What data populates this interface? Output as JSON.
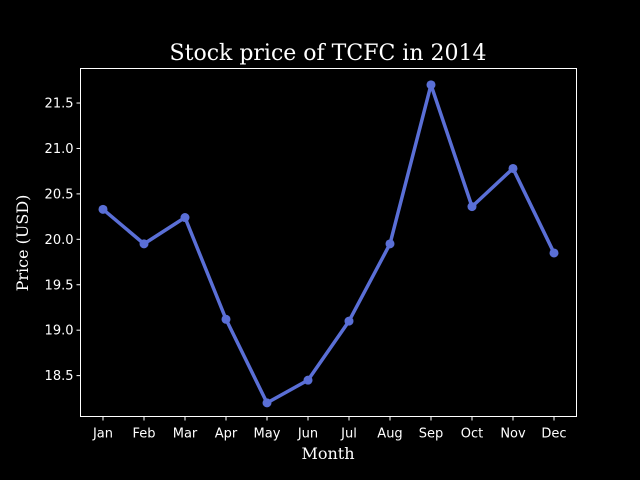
{
  "chart_data": {
    "type": "line",
    "title": "Stock price of TCFC in 2014",
    "xlabel": "Month",
    "ylabel": "Price (USD)",
    "categories": [
      "Jan",
      "Feb",
      "Mar",
      "Apr",
      "May",
      "Jun",
      "Jul",
      "Aug",
      "Sep",
      "Oct",
      "Nov",
      "Dec"
    ],
    "series": [
      {
        "values": [
          20.33,
          19.95,
          20.24,
          19.12,
          18.2,
          18.45,
          19.1,
          19.95,
          21.7,
          20.36,
          20.78,
          19.85
        ],
        "color": "#5a6fd6"
      }
    ],
    "yticks": [
      "18.5",
      "19.0",
      "19.5",
      "20.0",
      "20.5",
      "21.0",
      "21.5"
    ],
    "ylim": [
      18.05,
      21.88
    ],
    "grid": false,
    "legend": "none",
    "background": "#000000",
    "foreground": "#ffffff"
  }
}
